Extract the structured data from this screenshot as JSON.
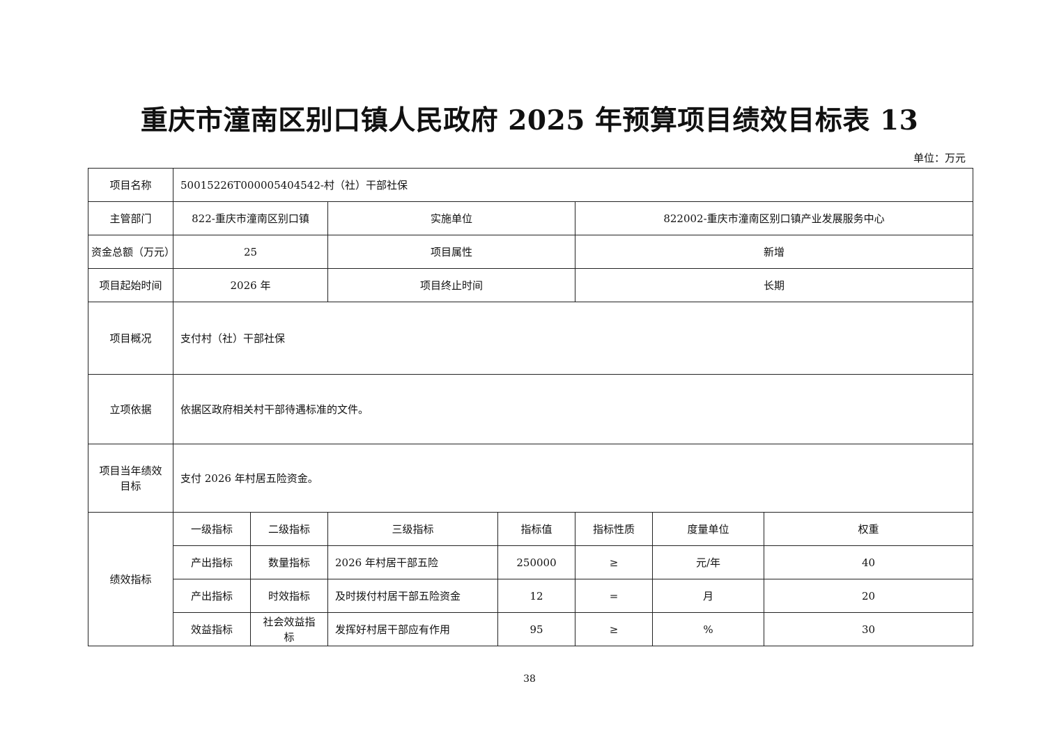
{
  "title": "重庆市潼南区别口镇人民政府 2025 年预算项目绩效目标表 13",
  "unit": "单位：万元",
  "info": {
    "project_name_label": "项目名称",
    "project_name": "50015226T000005404542-村（社）干部社保",
    "dept_label": "主管部门",
    "dept": "822-重庆市潼南区别口镇",
    "impl_label": "实施单位",
    "impl": "822002-重庆市潼南区别口镇产业发展服务中心",
    "fund_label": "资金总额（万元）",
    "fund": "25",
    "attr_label": "项目属性",
    "attr": "新增",
    "start_label": "项目起始时间",
    "start": "2026 年",
    "end_label": "项目终止时间",
    "end": "长期",
    "overview_label": "项目概况",
    "overview": "支付村（社）干部社保",
    "basis_label": "立项依据",
    "basis": "依据区政府相关村干部待遇标准的文件。",
    "goal_label": "项目当年绩效目标",
    "goal": "支付 2026 年村居五险资金。"
  },
  "indicators": {
    "label": "绩效指标",
    "headers": [
      "一级指标",
      "二级指标",
      "三级指标",
      "指标值",
      "指标性质",
      "度量单位",
      "权重"
    ],
    "rows": [
      [
        "产出指标",
        "数量指标",
        "2026 年村居干部五险",
        "250000",
        "≥",
        "元/年",
        "40"
      ],
      [
        "产出指标",
        "时效指标",
        "及时拨付村居干部五险资金",
        "12",
        "=",
        "月",
        "20"
      ],
      [
        "效益指标",
        "社会效益指标",
        "发挥好村居干部应有作用",
        "95",
        "≥",
        "%",
        "30"
      ]
    ]
  },
  "page_number": "38"
}
